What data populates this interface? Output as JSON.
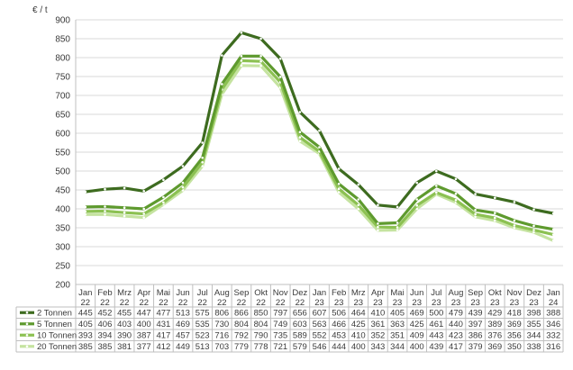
{
  "chart_data": {
    "type": "line",
    "ylabel": "€ / t",
    "ylim": [
      200,
      900
    ],
    "yticks": [
      200,
      250,
      300,
      350,
      400,
      450,
      500,
      550,
      600,
      650,
      700,
      750,
      800,
      850,
      900
    ],
    "grid": true,
    "legend": "table-below",
    "categories": [
      [
        "Jan",
        "22"
      ],
      [
        "Feb",
        "22"
      ],
      [
        "Mrz",
        "22"
      ],
      [
        "Apr",
        "22"
      ],
      [
        "Mai",
        "22"
      ],
      [
        "Jun",
        "22"
      ],
      [
        "Jul",
        "22"
      ],
      [
        "Aug",
        "22"
      ],
      [
        "Sep",
        "22"
      ],
      [
        "Okt",
        "22"
      ],
      [
        "Nov",
        "22"
      ],
      [
        "Dez",
        "22"
      ],
      [
        "Jan",
        "23"
      ],
      [
        "Feb",
        "23"
      ],
      [
        "Mrz",
        "23"
      ],
      [
        "Apr",
        "23"
      ],
      [
        "Mai",
        "23"
      ],
      [
        "Jun",
        "23"
      ],
      [
        "Jul",
        "23"
      ],
      [
        "Aug",
        "23"
      ],
      [
        "Sep",
        "23"
      ],
      [
        "Okt",
        "23"
      ],
      [
        "Nov",
        "23"
      ],
      [
        "Dez",
        "23"
      ],
      [
        "Jan",
        "24"
      ]
    ],
    "series": [
      {
        "name": "2 Tonnen",
        "color": "#3d6b1f",
        "values": [
          445,
          452,
          455,
          447,
          477,
          513,
          575,
          806,
          866,
          850,
          797,
          656,
          607,
          506,
          464,
          410,
          405,
          469,
          500,
          479,
          439,
          429,
          418,
          398,
          388
        ]
      },
      {
        "name": "5 Tonnen",
        "color": "#5e9a2e",
        "values": [
          405,
          406,
          403,
          400,
          431,
          469,
          535,
          730,
          804,
          804,
          749,
          603,
          563,
          466,
          425,
          361,
          363,
          425,
          461,
          440,
          397,
          389,
          369,
          355,
          346
        ]
      },
      {
        "name": "10 Tonnen",
        "color": "#8cc152",
        "values": [
          393,
          394,
          390,
          387,
          417,
          457,
          523,
          716,
          792,
          790,
          735,
          589,
          552,
          453,
          410,
          352,
          351,
          409,
          443,
          423,
          386,
          376,
          356,
          344,
          332
        ]
      },
      {
        "name": "20 Tonnen",
        "color": "#c5e3a0",
        "values": [
          385,
          385,
          381,
          377,
          412,
          449,
          513,
          703,
          779,
          778,
          721,
          579,
          546,
          444,
          400,
          343,
          344,
          400,
          439,
          417,
          379,
          369,
          350,
          338,
          316
        ]
      }
    ]
  }
}
